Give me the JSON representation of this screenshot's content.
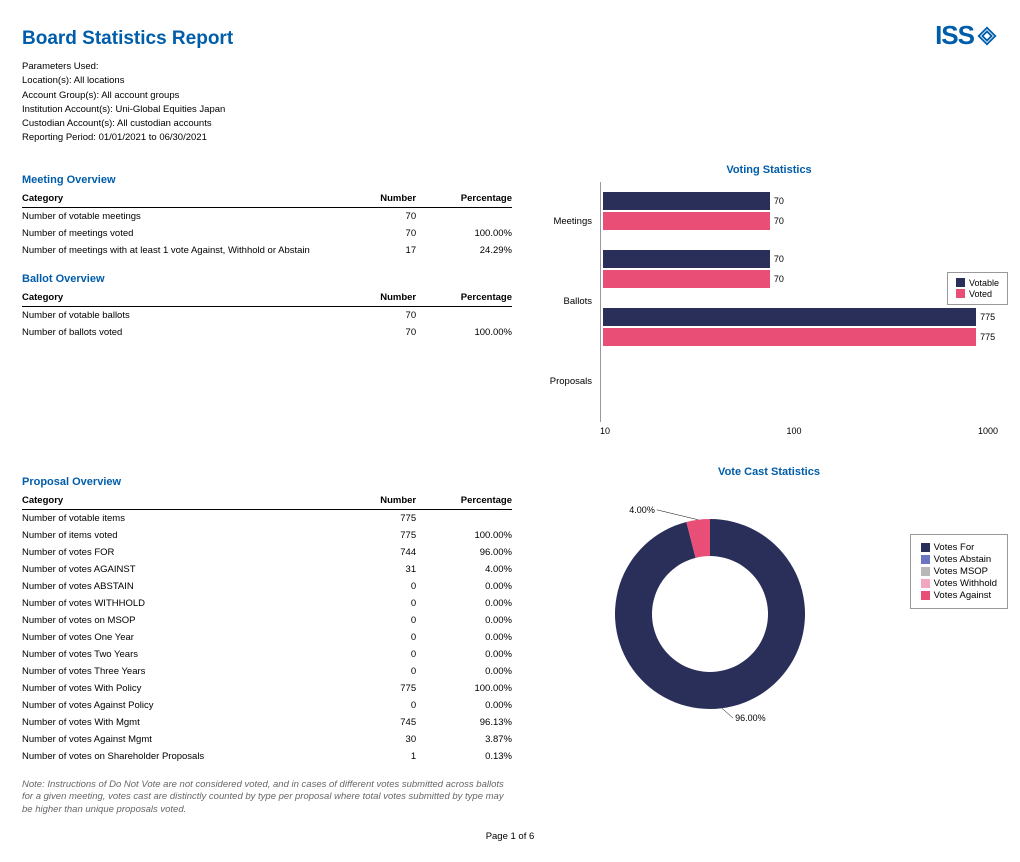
{
  "report": {
    "title": "Board Statistics Report",
    "logo_text": "ISS",
    "accent_color": "#005daa",
    "params_label": "Parameters Used:",
    "params": [
      "Location(s):  All locations",
      "Account Group(s):  All account groups",
      "Institution Account(s):  Uni-Global Equities Japan",
      "Custodian Account(s):  All custodian accounts",
      "Reporting Period: 01/01/2021 to 06/30/2021"
    ],
    "footer": "Page 1 of 6",
    "note": "Note: Instructions of Do Not Vote are not considered voted, and in cases of different votes submitted across ballots for a given meeting, votes cast are distinctly counted by type per proposal where total votes submitted by type may be higher than unique proposals voted."
  },
  "meeting_overview": {
    "title": "Meeting Overview",
    "headers": {
      "cat": "Category",
      "num": "Number",
      "pct": "Percentage"
    },
    "rows": [
      {
        "cat": "Number of votable meetings",
        "num": "70",
        "pct": ""
      },
      {
        "cat": "Number of meetings voted",
        "num": "70",
        "pct": "100.00%"
      },
      {
        "cat": "Number of meetings with at least 1 vote Against, Withhold or Abstain",
        "num": "17",
        "pct": "24.29%"
      }
    ]
  },
  "ballot_overview": {
    "title": "Ballot Overview",
    "headers": {
      "cat": "Category",
      "num": "Number",
      "pct": "Percentage"
    },
    "rows": [
      {
        "cat": "Number of votable ballots",
        "num": "70",
        "pct": ""
      },
      {
        "cat": "Number of ballots voted",
        "num": "70",
        "pct": "100.00%"
      }
    ]
  },
  "proposal_overview": {
    "title": "Proposal Overview",
    "headers": {
      "cat": "Category",
      "num": "Number",
      "pct": "Percentage"
    },
    "rows": [
      {
        "cat": "Number of votable items",
        "num": "775",
        "pct": ""
      },
      {
        "cat": "Number of items voted",
        "num": "775",
        "pct": "100.00%"
      },
      {
        "cat": "Number of votes FOR",
        "num": "744",
        "pct": "96.00%"
      },
      {
        "cat": "Number of votes AGAINST",
        "num": "31",
        "pct": "4.00%"
      },
      {
        "cat": "Number of votes ABSTAIN",
        "num": "0",
        "pct": "0.00%"
      },
      {
        "cat": "Number of votes WITHHOLD",
        "num": "0",
        "pct": "0.00%"
      },
      {
        "cat": "Number of votes on MSOP",
        "num": "0",
        "pct": "0.00%"
      },
      {
        "cat": "Number of votes One Year",
        "num": "0",
        "pct": "0.00%"
      },
      {
        "cat": "Number of votes Two Years",
        "num": "0",
        "pct": "0.00%"
      },
      {
        "cat": "Number of votes Three Years",
        "num": "0",
        "pct": "0.00%"
      },
      {
        "cat": "Number of votes With Policy",
        "num": "775",
        "pct": "100.00%"
      },
      {
        "cat": "Number of votes Against Policy",
        "num": "0",
        "pct": "0.00%"
      },
      {
        "cat": "Number of votes With Mgmt",
        "num": "745",
        "pct": "96.13%"
      },
      {
        "cat": "Number of votes Against Mgmt",
        "num": "30",
        "pct": "3.87%"
      },
      {
        "cat": "Number of votes on Shareholder Proposals",
        "num": "1",
        "pct": "0.13%"
      }
    ]
  },
  "voting_stats_chart": {
    "title": "Voting Statistics",
    "type": "bar",
    "scale": "log",
    "colors": {
      "votable": "#2a2f5a",
      "voted": "#e94e77"
    },
    "categories": [
      "Meetings",
      "Ballots",
      "Proposals"
    ],
    "series": [
      {
        "name": "Votable",
        "values": [
          70,
          70,
          775
        ]
      },
      {
        "name": "Voted",
        "values": [
          70,
          70,
          775
        ]
      }
    ],
    "xticks": [
      "10",
      "100",
      "1000"
    ],
    "legend": [
      "Votable",
      "Voted"
    ]
  },
  "vote_cast_chart": {
    "title": "Vote Cast Statistics",
    "type": "donut",
    "slices": [
      {
        "label": "Votes For",
        "pct": 96.0,
        "color": "#2a2f5a",
        "callout": "96.00%"
      },
      {
        "label": "Votes Abstain",
        "pct": 0.0,
        "color": "#6a74c2"
      },
      {
        "label": "Votes MSOP",
        "pct": 0.0,
        "color": "#b8b8b8"
      },
      {
        "label": "Votes Withhold",
        "pct": 0.0,
        "color": "#f1a7c0"
      },
      {
        "label": "Votes Against",
        "pct": 4.0,
        "color": "#e94e77",
        "callout": "4.00%"
      }
    ],
    "legend": [
      "Votes For",
      "Votes Abstain",
      "Votes MSOP",
      "Votes Withhold",
      "Votes Against"
    ]
  }
}
